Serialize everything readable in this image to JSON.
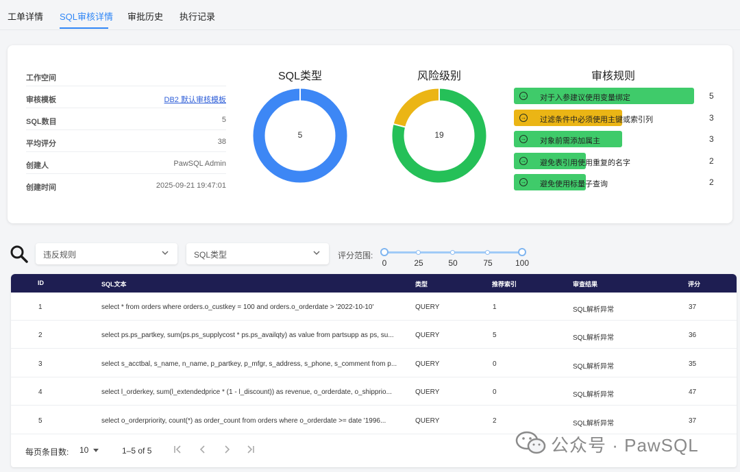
{
  "tabs": [
    {
      "label": "工单详情",
      "active": false
    },
    {
      "label": "SQL审核详情",
      "active": true
    },
    {
      "label": "审批历史",
      "active": false
    },
    {
      "label": "执行记录",
      "active": false
    }
  ],
  "summary": {
    "workspace_label": "工作空间",
    "workspace_value": "",
    "template_label": "审核模板",
    "template_value": "DB2 默认审核模板",
    "sql_count_label": "SQL数目",
    "sql_count_value": "5",
    "avg_score_label": "平均评分",
    "avg_score_value": "38",
    "creator_label": "创建人",
    "creator_value": "PawSQL Admin",
    "created_label": "创建时间",
    "created_value": "2025-09-21 19:47:01"
  },
  "chart_data": [
    {
      "type": "pie",
      "title": "SQL类型",
      "center_label": "5",
      "values": [
        5
      ],
      "colors": [
        "#3d87f5"
      ]
    },
    {
      "type": "pie",
      "title": "风险级别",
      "center_label": "19",
      "values": [
        15,
        4
      ],
      "colors": [
        "#25c058",
        "#ebb515"
      ]
    },
    {
      "type": "bar",
      "title": "审核规则",
      "categories": [
        "对于入参建议使用变量绑定",
        "过滤条件中必须使用主键或索引列",
        "对象前需添加属主",
        "避免表引用使用重复的名字",
        "避免使用标量子查询"
      ],
      "values": [
        5,
        3,
        3,
        2,
        2
      ],
      "colors": [
        "#3fcb6a",
        "#ebb515",
        "#3fcb6a",
        "#3fcb6a",
        "#3fcb6a"
      ],
      "xlim": [
        0,
        5
      ]
    }
  ],
  "filters": {
    "rule_placeholder": "违反规则",
    "type_placeholder": "SQL类型",
    "score_range_label": "评分范围:",
    "score_ticks": [
      "0",
      "25",
      "50",
      "75",
      "100"
    ],
    "score_min": 0,
    "score_max": 100
  },
  "table": {
    "headers": {
      "id": "ID",
      "sql": "SQL文本",
      "type": "类型",
      "index": "推荐索引",
      "result": "审查结果",
      "score": "评分"
    },
    "rows": [
      {
        "id": "1",
        "sql": "select * from orders where orders.o_custkey = 100 and orders.o_orderdate > '2022-10-10'",
        "type": "QUERY",
        "index": "1",
        "result": "SQL解析异常",
        "score": "37"
      },
      {
        "id": "2",
        "sql": "select ps.ps_partkey, sum(ps.ps_supplycost * ps.ps_availqty) as value from partsupp as ps, su...",
        "type": "QUERY",
        "index": "5",
        "result": "SQL解析异常",
        "score": "36"
      },
      {
        "id": "3",
        "sql": "select s_acctbal, s_name, n_name, p_partkey, p_mfgr, s_address, s_phone, s_comment from p...",
        "type": "QUERY",
        "index": "0",
        "result": "SQL解析异常",
        "score": "35"
      },
      {
        "id": "4",
        "sql": "select l_orderkey, sum(l_extendedprice * (1 - l_discount)) as revenue, o_orderdate, o_shipprio...",
        "type": "QUERY",
        "index": "0",
        "result": "SQL解析异常",
        "score": "47"
      },
      {
        "id": "5",
        "sql": "select o_orderpriority, count(*) as order_count from orders where o_orderdate >= date '1996...",
        "type": "QUERY",
        "index": "2",
        "result": "SQL解析异常",
        "score": "37"
      }
    ]
  },
  "pagination": {
    "per_page_label": "每页条目数:",
    "per_page_value": "10",
    "range_text": "1–5 of 5"
  },
  "watermark": {
    "text": "公众号 · PawSQL"
  }
}
